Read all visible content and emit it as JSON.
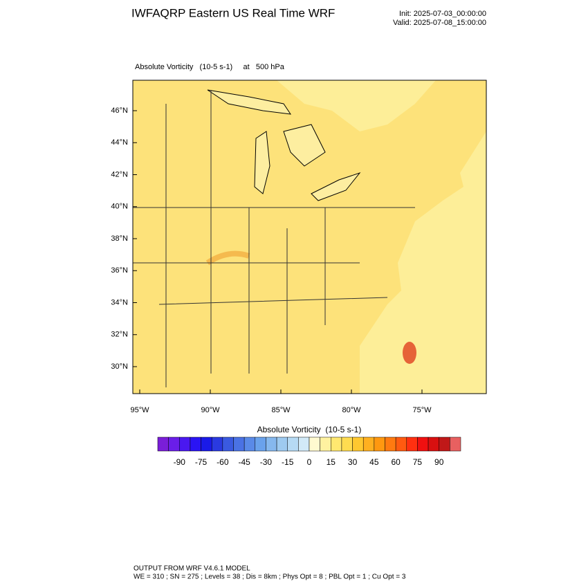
{
  "header": {
    "title": "IWFAQRP Eastern US Real Time WRF",
    "init": "Init: 2025-07-03_00:00:00",
    "valid": "Valid: 2025-07-08_15:00:00"
  },
  "plot": {
    "subtitle": "Absolute Vorticity   (10-5 s-1)     at   500 hPa",
    "lat_labels": [
      "46°N",
      "44°N",
      "42°N",
      "40°N",
      "38°N",
      "36°N",
      "34°N",
      "32°N",
      "30°N"
    ],
    "lon_labels": [
      "95°W",
      "90°W",
      "85°W",
      "80°W",
      "75°W"
    ]
  },
  "colorbar": {
    "title": "Absolute Vorticity  (10-5 s-1)",
    "ticks": [
      -90,
      -75,
      -60,
      -45,
      -30,
      -15,
      0,
      15,
      30,
      45,
      60,
      75,
      90
    ],
    "colors": [
      "#7a1ed8",
      "#6a1ee8",
      "#4a18f0",
      "#2a14f4",
      "#1a1ae8",
      "#2a3ae0",
      "#3a5ae0",
      "#4a72e4",
      "#5a8ae8",
      "#6aa2ec",
      "#86b8ee",
      "#9ecaf0",
      "#b6daf4",
      "#d2eaf8",
      "#fffad0",
      "#fff2a0",
      "#ffe870",
      "#ffdc50",
      "#ffc830",
      "#ffb020",
      "#ff9810",
      "#ff7a10",
      "#ff5a10",
      "#ff3010",
      "#f01010",
      "#d81010",
      "#c01818",
      "#e86060"
    ]
  },
  "footer": {
    "line1": "OUTPUT FROM WRF V4.6.1 MODEL",
    "line2": "WE = 310 ; SN = 275 ; Levels = 38 ; Dis = 8km ; Phys Opt = 8 ; PBL Opt = 1 ; Cu Opt = 3"
  }
}
